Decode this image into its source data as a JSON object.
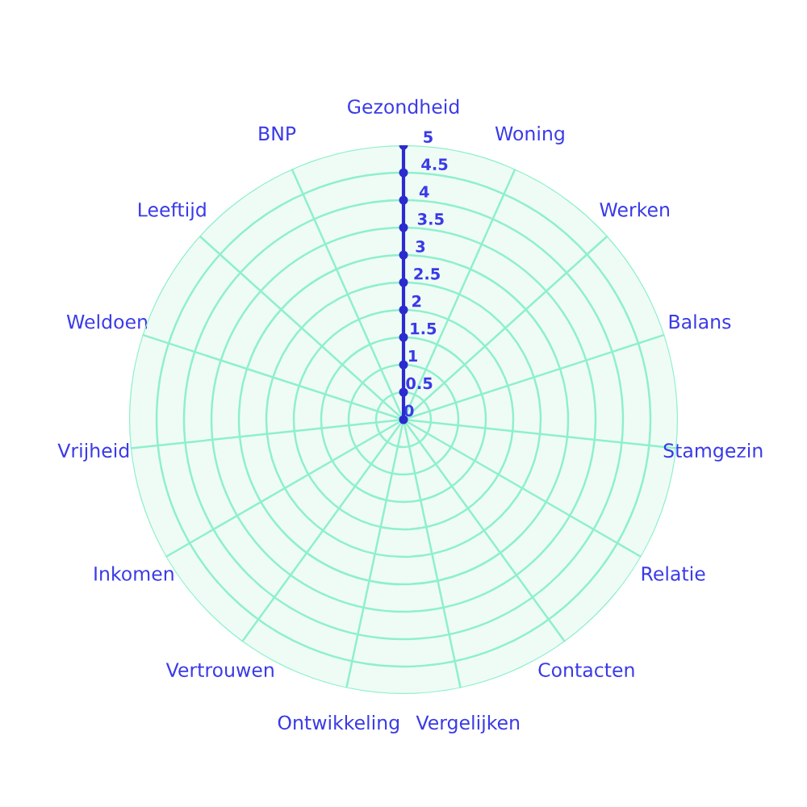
{
  "chart_data": {
    "type": "radar",
    "categories": [
      "Gezondheid",
      "Woning",
      "Werken",
      "Balans",
      "Stamgezin",
      "Relatie",
      "Contacten",
      "Vergelijken",
      "Ontwikkeling",
      "Vertrouwen",
      "Inkomen",
      "Vrijheid",
      "Weldoen",
      "Leeftijd",
      "BNP"
    ],
    "ylim": [
      0,
      5
    ],
    "yticks": [
      0,
      0.5,
      1,
      1.5,
      2,
      2.5,
      3,
      3.5,
      4,
      4.5,
      5
    ],
    "grid": true
  }
}
